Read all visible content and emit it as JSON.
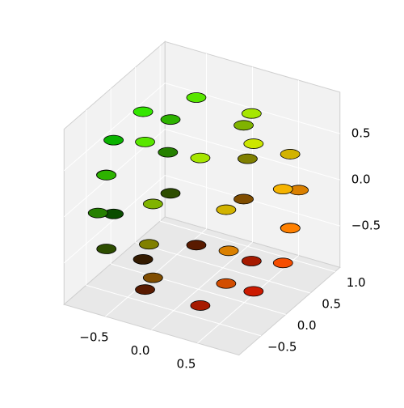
{
  "chart_data": {
    "type": "scatter3d",
    "series": [
      {
        "x": [
          0.6,
          0.3,
          -0.3,
          -0.6,
          -0.3,
          0.3,
          0.92,
          0.65,
          0,
          -0.65,
          -0.92,
          -0.65,
          0,
          0.65,
          1,
          0.71,
          0,
          -0.71,
          -1,
          -0.71,
          0,
          0.71,
          0.92,
          0.65,
          0,
          -0.65,
          -0.92,
          -0.65,
          0,
          0.65,
          0.6,
          0.3,
          -0.3,
          -0.6,
          -0.3,
          0.3
        ],
        "y": [
          0,
          0.52,
          0.52,
          0,
          -0.52,
          -0.52,
          0,
          0.65,
          0.92,
          0.65,
          0,
          -0.65,
          -0.92,
          -0.65,
          0,
          0.71,
          1,
          0.71,
          0,
          -0.71,
          -1,
          -0.71,
          0,
          0.65,
          0.92,
          0.65,
          0,
          -0.65,
          -0.92,
          -0.65,
          0,
          0.52,
          0.52,
          0,
          -0.52,
          -0.52
        ],
        "z": [
          0.8,
          0.8,
          0.8,
          0.8,
          0.8,
          0.8,
          0.4,
          0.4,
          0.4,
          0.4,
          0.4,
          0.4,
          0.4,
          0.4,
          0,
          0,
          0,
          0,
          0,
          0,
          0,
          0,
          -0.4,
          -0.4,
          -0.4,
          -0.4,
          -0.4,
          -0.4,
          -0.4,
          -0.4,
          -0.8,
          -0.8,
          -0.8,
          -0.8,
          -0.8,
          -0.8
        ],
        "colors": [
          "#cce600",
          "#a6e600",
          "#59e600",
          "#33e600",
          "#59e600",
          "#a6e600",
          "#f5b300",
          "#d2b300",
          "#80b300",
          "#2db300",
          "#0ab300",
          "#2db300",
          "#80b300",
          "#d2b300",
          "#ff8000",
          "#da8000",
          "#808000",
          "#258000",
          "#008000",
          "#258000",
          "#808000",
          "#da8000",
          "#f54d00",
          "#d24d00",
          "#804d00",
          "#2d4d00",
          "#0a4d00",
          "#2d4d00",
          "#804d00",
          "#d24d00",
          "#cc1a00",
          "#a61a00",
          "#591a00",
          "#331a00",
          "#591a00",
          "#a61a00"
        ]
      }
    ],
    "xlim": [
      -0.95,
      0.95
    ],
    "ylim": [
      -0.95,
      1.1
    ],
    "zlim": [
      -0.95,
      0.95
    ],
    "xticks": [
      {
        "value": -0.5,
        "label": "−0.5"
      },
      {
        "value": 0,
        "label": "0.0"
      },
      {
        "value": 0.5,
        "label": "0.5"
      }
    ],
    "yticks": [
      {
        "value": -0.5,
        "label": "−0.5"
      },
      {
        "value": 0,
        "label": "0.0"
      },
      {
        "value": 0.5,
        "label": "0.5"
      },
      {
        "value": 1,
        "label": "1.0"
      }
    ],
    "zticks": [
      {
        "value": -0.5,
        "label": "−0.5"
      },
      {
        "value": 0,
        "label": "0.0"
      },
      {
        "value": 0.5,
        "label": "0.5"
      }
    ],
    "grid": true
  }
}
